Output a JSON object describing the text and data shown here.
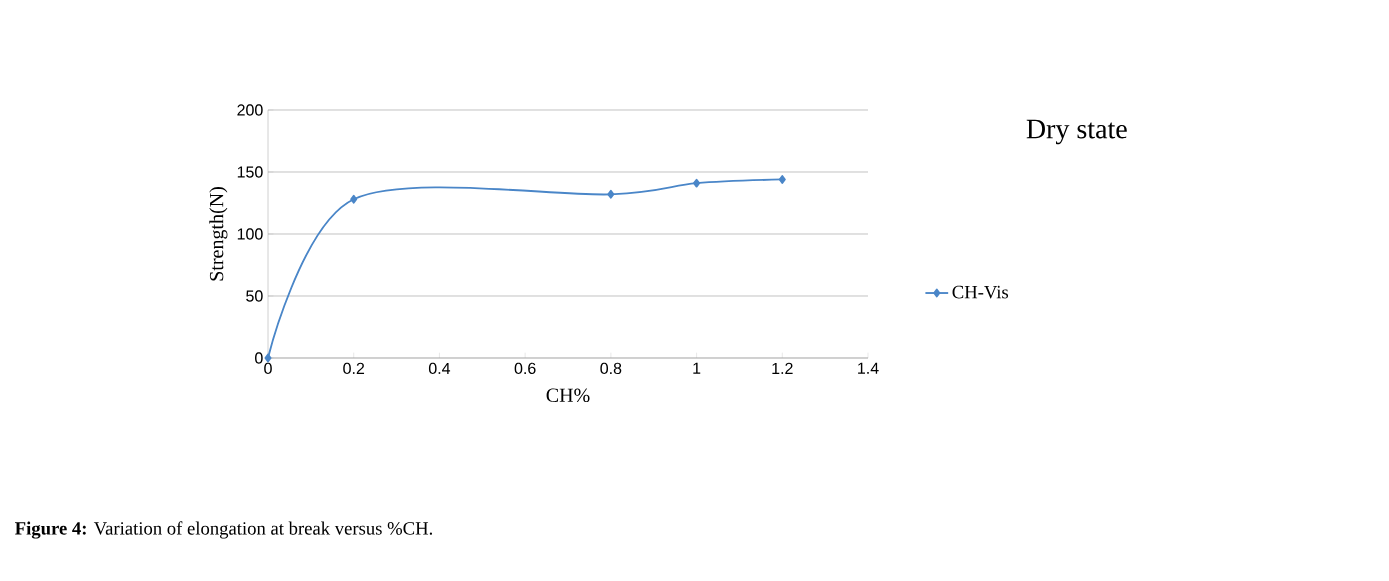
{
  "chart_data": {
    "type": "line",
    "title": "Dry state",
    "xlabel": "CH%",
    "ylabel": "Strength(N)",
    "annotations": [
      "**Figure 4:** Variation of elongation at break versus %CH."
    ],
    "x": [
      0,
      0.2,
      0.8,
      1,
      1.2
    ],
    "series": [
      {
        "name": "CH-Vis",
        "color": "#4a86c8",
        "values": [
          0,
          128,
          132,
          141,
          144
        ]
      }
    ],
    "xlim": [
      0,
      1.4
    ],
    "ylim": [
      0,
      200
    ],
    "xticks": [
      0,
      0.2,
      0.4,
      0.6,
      0.8,
      1,
      1.2,
      1.4
    ],
    "yticks": [
      0,
      50,
      100,
      150,
      200
    ],
    "grid": "y",
    "legend": "right",
    "marker": "diamond"
  }
}
